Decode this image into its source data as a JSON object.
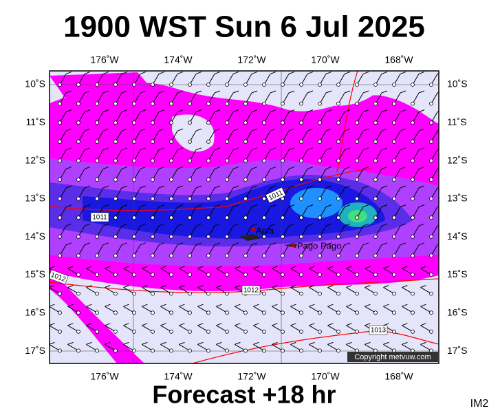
{
  "title": "1900 WST Sun 6 Jul 2025",
  "map": {
    "lon_labels": [
      "176˚W",
      "174˚W",
      "172˚W",
      "170˚W",
      "168˚W"
    ],
    "lat_labels": [
      "10˚S",
      "11˚S",
      "12˚S",
      "13˚S",
      "14˚S",
      "15˚S",
      "16˚S",
      "17˚S"
    ],
    "isobar_labels": [
      "1011",
      "1011",
      "1012",
      "1012",
      "1013"
    ],
    "places": [
      "Apia",
      "Pago Pago"
    ],
    "copyright": "Copyright metvuw.com"
  },
  "footer": "Forecast +18 hr",
  "corner": "IM2"
}
